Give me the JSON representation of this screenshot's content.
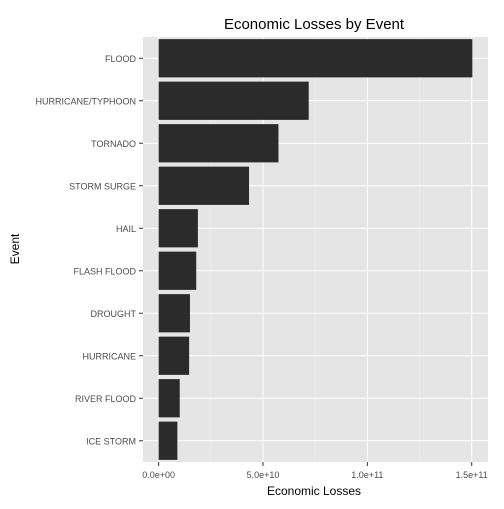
{
  "chart_data": {
    "type": "bar",
    "orientation": "horizontal",
    "title": "Economic Losses by Event",
    "xlabel": "Economic Losses",
    "ylabel": "Event",
    "categories": [
      "FLOOD",
      "HURRICANE/TYPHOON",
      "TORNADO",
      "STORM SURGE",
      "HAIL",
      "FLASH FLOOD",
      "DROUGHT",
      "HURRICANE",
      "RIVER FLOOD",
      "ICE STORM"
    ],
    "values": [
      150300000000,
      71900000000,
      57400000000,
      43300000000,
      18800000000,
      18000000000,
      15000000000,
      14600000000,
      10100000000,
      8970000000
    ],
    "xlim": [
      -7500000000,
      157800000000
    ],
    "x_ticks": [
      {
        "value": 0,
        "label": "0.0e+00"
      },
      {
        "value": 50000000000,
        "label": "5.0e+10"
      },
      {
        "value": 100000000000,
        "label": "1.0e+11"
      },
      {
        "value": 150000000000,
        "label": "1.5e+11"
      }
    ],
    "grid": true,
    "legend": "none",
    "colors": {
      "bar": "#2b2b2b",
      "panel": "#e5e5e5",
      "grid_major": "#ffffff",
      "grid_minor": "#f2f2f2",
      "tick_text": "#4d4d4d",
      "title_text": "#000000"
    }
  }
}
